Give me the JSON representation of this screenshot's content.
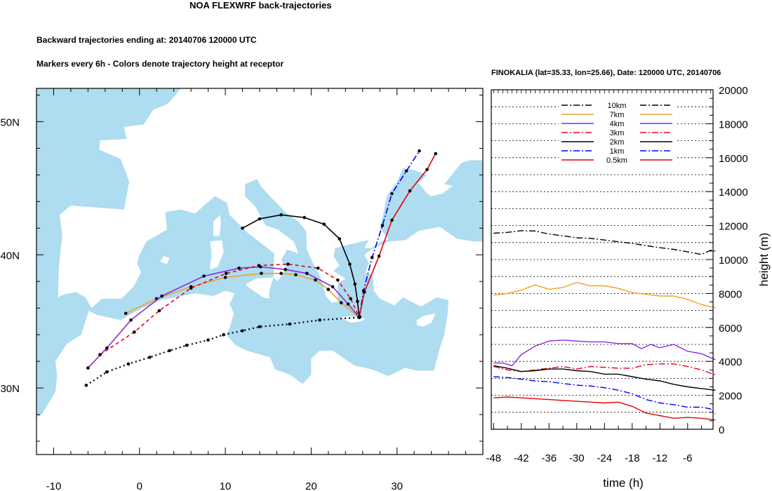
{
  "title": "NOA FLEXWRF back-trajectories",
  "subtitle_line1": "Backward trajectories ending at: 20140706  120000 UTC",
  "subtitle_line2": "Markers every 6h - Colors denote trajectory height at receptor",
  "profile_title": "FINOKALIA (lat=35.33,  lon=25.66), Date: 120000 UTC, 20140706",
  "colors": {
    "sea": "#aedcf0",
    "land": "#ffffff",
    "10km": "#000000",
    "7km": "#f0a020",
    "4km": "#8a2be2",
    "3km": "#e8001c",
    "2km": "#000000",
    "1km": "#0000ff",
    "0.5km": "#e80000"
  },
  "map": {
    "lon_range": [
      -12,
      40
    ],
    "lat_range": [
      25,
      52.5
    ],
    "x_ticks": [
      -10,
      0,
      10,
      20,
      30
    ],
    "y_ticks": [
      {
        "lat": 30,
        "label": "30N"
      },
      {
        "lat": 40,
        "label": "40N"
      },
      {
        "lat": 50,
        "label": "50N"
      }
    ],
    "receptor": {
      "lon": 25.66,
      "lat": 35.33
    }
  },
  "chart_data": [
    {
      "type": "line",
      "title": "NOA FLEXWRF back-trajectories",
      "xlabel": "",
      "ylabel": "",
      "xlim": [
        -12,
        40
      ],
      "ylim": [
        25,
        52.5
      ],
      "series": [
        {
          "name": "10km",
          "style": "dotted",
          "points": [
            [
              -6.2,
              30.2
            ],
            [
              -3.8,
              31.2
            ],
            [
              -1.3,
              31.8
            ],
            [
              1.2,
              32.3
            ],
            [
              3.5,
              32.8
            ],
            [
              5.5,
              33.2
            ],
            [
              8,
              33.6
            ],
            [
              9.8,
              34
            ],
            [
              12,
              34.3
            ],
            [
              14,
              34.6
            ],
            [
              17.5,
              34.8
            ],
            [
              21,
              35.1
            ],
            [
              25.6,
              35.3
            ]
          ]
        },
        {
          "name": "7km",
          "style": "solid",
          "points": [
            [
              -1.6,
              35.6
            ],
            [
              2,
              36.7
            ],
            [
              6,
              37.6
            ],
            [
              10,
              38.3
            ],
            [
              14.2,
              38.6
            ],
            [
              16.5,
              38.6
            ],
            [
              18.2,
              38.5
            ],
            [
              20.5,
              38.1
            ],
            [
              22,
              37.4
            ],
            [
              23.5,
              36.4
            ],
            [
              25.6,
              35.3
            ]
          ]
        },
        {
          "name": "4km",
          "style": "solid",
          "points": [
            [
              -6,
              31.5
            ],
            [
              -3.8,
              33
            ],
            [
              -1,
              35.1
            ],
            [
              2.6,
              36.9
            ],
            [
              7.5,
              38.4
            ],
            [
              11.6,
              39
            ],
            [
              14.1,
              39.1
            ],
            [
              17,
              38.9
            ],
            [
              19.5,
              38.6
            ],
            [
              22.5,
              37.6
            ],
            [
              24.3,
              36.3
            ],
            [
              25.6,
              35.3
            ]
          ]
        },
        {
          "name": "3km",
          "style": "dashed",
          "points": [
            [
              -4.6,
              32.5
            ],
            [
              -0.6,
              34.2
            ],
            [
              2.3,
              35.8
            ],
            [
              6,
              37.5
            ],
            [
              10.1,
              38.6
            ],
            [
              13.9,
              39.2
            ],
            [
              17.3,
              39.3
            ],
            [
              20.8,
              39
            ],
            [
              23.1,
              38.1
            ],
            [
              24.6,
              36.7
            ],
            [
              25.6,
              35.3
            ]
          ]
        },
        {
          "name": "2km",
          "style": "solid",
          "points": [
            [
              12,
              42
            ],
            [
              14,
              42.7
            ],
            [
              16.5,
              43
            ],
            [
              19.2,
              42.8
            ],
            [
              21.5,
              42.3
            ],
            [
              23.3,
              41.2
            ],
            [
              24.5,
              39.3
            ],
            [
              25.1,
              37.8
            ],
            [
              25.4,
              36.5
            ],
            [
              25.6,
              35.3
            ]
          ]
        },
        {
          "name": "1km",
          "style": "dashdot",
          "points": [
            [
              25.6,
              35.3
            ],
            [
              26.1,
              37.3
            ],
            [
              27.1,
              39.8
            ],
            [
              28.3,
              42.2
            ],
            [
              29.4,
              44.6
            ],
            [
              31.1,
              46.3
            ],
            [
              32.6,
              47.8
            ]
          ]
        },
        {
          "name": "0.5km",
          "style": "solid",
          "points": [
            [
              25.6,
              35.3
            ],
            [
              26.2,
              37.2
            ],
            [
              27.9,
              39.9
            ],
            [
              29.4,
              42.6
            ],
            [
              31.5,
              44.8
            ],
            [
              33.5,
              46.4
            ],
            [
              34.5,
              47.6
            ]
          ]
        }
      ]
    },
    {
      "type": "line",
      "title": "FINOKALIA (lat=35.33,  lon=25.66), Date: 120000 UTC, 20140706",
      "xlabel": "time (h)",
      "ylabel": "height (m)",
      "xlim": [
        -48.5,
        -0.5
      ],
      "ylim": [
        0,
        20000
      ],
      "x_ticks": [
        -48,
        -42,
        -36,
        -30,
        -24,
        -18,
        -12,
        -6
      ],
      "y_ticks": [
        0,
        2000,
        4000,
        6000,
        8000,
        10000,
        12000,
        14000,
        16000,
        18000,
        20000
      ],
      "series": [
        {
          "name": "10km",
          "x": [
            -48,
            -45,
            -42,
            -39,
            -36,
            -33,
            -30,
            -27,
            -24,
            -21,
            -18,
            -15,
            -12,
            -9,
            -6,
            -3,
            -1,
            0
          ],
          "values": [
            11550,
            11600,
            11700,
            11680,
            11500,
            11400,
            11280,
            11250,
            11150,
            11050,
            10950,
            10820,
            10700,
            10600,
            10450,
            10300,
            10550,
            10500
          ]
        },
        {
          "name": "7km",
          "x": [
            -48,
            -45,
            -42,
            -39,
            -36,
            -33,
            -30,
            -27,
            -24,
            -21,
            -18,
            -15,
            -12,
            -9,
            -6,
            -3,
            0
          ],
          "values": [
            7900,
            8000,
            8200,
            8500,
            8250,
            8350,
            8650,
            8450,
            8450,
            8300,
            8050,
            7950,
            7850,
            7850,
            7650,
            7350,
            7150
          ]
        },
        {
          "name": "4km",
          "x": [
            -48,
            -46,
            -44,
            -42,
            -39,
            -36,
            -33,
            -30,
            -27,
            -24,
            -21,
            -18,
            -16,
            -14,
            -12,
            -9,
            -6,
            -3,
            0
          ],
          "values": [
            3900,
            3900,
            3750,
            4400,
            4900,
            5200,
            5250,
            5200,
            5150,
            5150,
            5050,
            5050,
            4750,
            5000,
            4800,
            5000,
            4600,
            4450,
            4100
          ]
        },
        {
          "name": "3km",
          "x": [
            -48,
            -45,
            -42,
            -39,
            -36,
            -33,
            -30,
            -27,
            -24,
            -21,
            -18,
            -15,
            -12,
            -9,
            -6,
            -3,
            0
          ],
          "values": [
            3700,
            3500,
            3400,
            3500,
            3600,
            3700,
            3550,
            3700,
            3650,
            3600,
            3600,
            3800,
            3850,
            3850,
            3700,
            3500,
            3200
          ]
        },
        {
          "name": "2km",
          "x": [
            -48,
            -45,
            -42,
            -39,
            -36,
            -33,
            -30,
            -27,
            -24,
            -21,
            -18,
            -15,
            -12,
            -9,
            -6,
            -3,
            0
          ],
          "values": [
            3750,
            3600,
            3400,
            3450,
            3550,
            3550,
            3450,
            3400,
            3250,
            3250,
            3100,
            2950,
            2850,
            2650,
            2500,
            2400,
            2300
          ]
        },
        {
          "name": "1km",
          "x": [
            -48,
            -45,
            -42,
            -39,
            -36,
            -33,
            -30,
            -27,
            -24,
            -21,
            -18,
            -15,
            -12,
            -9,
            -6,
            -3,
            -1,
            0
          ],
          "values": [
            3100,
            3050,
            2950,
            2850,
            2800,
            2700,
            2600,
            2550,
            2450,
            2300,
            2100,
            1750,
            1550,
            1450,
            1300,
            1300,
            1200,
            900
          ]
        },
        {
          "name": "0.5km",
          "x": [
            -48,
            -45,
            -42,
            -39,
            -36,
            -33,
            -30,
            -27,
            -24,
            -21,
            -18,
            -15,
            -12,
            -9,
            -6,
            -3,
            0
          ],
          "values": [
            1850,
            1900,
            1850,
            1800,
            1750,
            1700,
            1650,
            1600,
            1550,
            1600,
            1350,
            950,
            800,
            650,
            700,
            650,
            550
          ]
        }
      ]
    }
  ],
  "legend": [
    {
      "label": "10km",
      "color": "#000000",
      "style": "dashdot"
    },
    {
      "label": "7km",
      "color": "#f0a020",
      "style": "solid"
    },
    {
      "label": "4km",
      "color": "#8a2be2",
      "style": "solid"
    },
    {
      "label": "3km",
      "color": "#e8001c",
      "style": "dashdot"
    },
    {
      "label": "2km",
      "color": "#000000",
      "style": "solid"
    },
    {
      "label": "1km",
      "color": "#0000ff",
      "style": "dashdot"
    },
    {
      "label": "0.5km",
      "color": "#e80000",
      "style": "solid"
    }
  ]
}
